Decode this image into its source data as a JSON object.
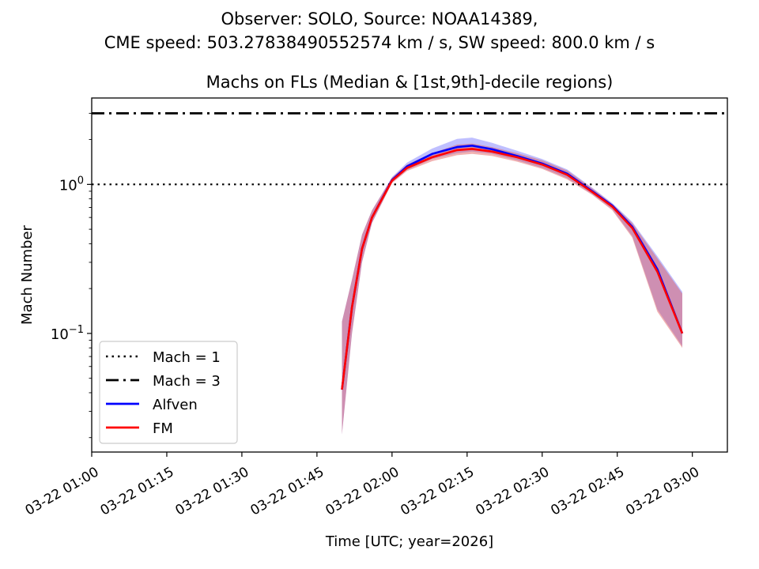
{
  "figure": {
    "suptitle_line1": "Observer: SOLO, Source: NOAA14389,",
    "suptitle_line2": "CME speed: 503.27838490552574 km / s, SW speed: 800.0 km / s"
  },
  "chart_data": {
    "type": "line",
    "title": "Machs on FLs (Median & [1st,9th]-decile regions)",
    "xlabel": "Time [UTC; year=2026]",
    "ylabel": "Mach Number",
    "yscale": "log",
    "xlim": [
      "2026-03-22 01:00",
      "2026-03-22 03:07"
    ],
    "ylim": [
      0.016,
      3.8
    ],
    "x_ticks": [
      "03-22 01:00",
      "03-22 01:15",
      "03-22 01:30",
      "03-22 01:45",
      "03-22 02:00",
      "03-22 02:15",
      "03-22 02:30",
      "03-22 02:45",
      "03-22 03:00"
    ],
    "y_ticks": [
      {
        "value": 0.1,
        "base": "10",
        "exp": "−1"
      },
      {
        "value": 1,
        "base": "10",
        "exp": "0"
      }
    ],
    "grid": false,
    "legend_position": "lower-left",
    "reference_lines": [
      {
        "name": "Mach = 1",
        "value": 1,
        "style": "dotted",
        "color": "#000000"
      },
      {
        "name": "Mach = 3",
        "value": 3,
        "style": "dashdot",
        "color": "#000000"
      }
    ],
    "series": [
      {
        "name": "Alfven",
        "color": "#0000ff",
        "band_color": "#7070ff",
        "points": [
          {
            "t": "2026-03-22 01:50",
            "median": 0.042,
            "low": 0.021,
            "high": 0.12
          },
          {
            "t": "2026-03-22 01:52",
            "median": 0.15,
            "low": 0.1,
            "high": 0.23
          },
          {
            "t": "2026-03-22 01:54",
            "median": 0.37,
            "low": 0.3,
            "high": 0.46
          },
          {
            "t": "2026-03-22 01:56",
            "median": 0.6,
            "low": 0.55,
            "high": 0.67
          },
          {
            "t": "2026-03-22 02:00",
            "median": 1.07,
            "low": 1.03,
            "high": 1.12
          },
          {
            "t": "2026-03-22 02:03",
            "median": 1.32,
            "low": 1.25,
            "high": 1.4
          },
          {
            "t": "2026-03-22 02:08",
            "median": 1.6,
            "low": 1.48,
            "high": 1.74
          },
          {
            "t": "2026-03-22 02:13",
            "median": 1.78,
            "low": 1.62,
            "high": 2.02
          },
          {
            "t": "2026-03-22 02:16",
            "median": 1.82,
            "low": 1.66,
            "high": 2.06
          },
          {
            "t": "2026-03-22 02:20",
            "median": 1.72,
            "low": 1.6,
            "high": 1.9
          },
          {
            "t": "2026-03-22 02:25",
            "median": 1.55,
            "low": 1.45,
            "high": 1.68
          },
          {
            "t": "2026-03-22 02:30",
            "median": 1.38,
            "low": 1.29,
            "high": 1.48
          },
          {
            "t": "2026-03-22 02:35",
            "median": 1.18,
            "low": 1.1,
            "high": 1.26
          },
          {
            "t": "2026-03-22 02:40",
            "median": 0.9,
            "low": 0.86,
            "high": 0.95
          },
          {
            "t": "2026-03-22 02:44",
            "median": 0.72,
            "low": 0.68,
            "high": 0.75
          },
          {
            "t": "2026-03-22 02:48",
            "median": 0.52,
            "low": 0.45,
            "high": 0.56
          },
          {
            "t": "2026-03-22 02:53",
            "median": 0.27,
            "low": 0.145,
            "high": 0.33
          },
          {
            "t": "2026-03-22 02:58",
            "median": 0.1,
            "low": 0.082,
            "high": 0.19
          }
        ]
      },
      {
        "name": "FM",
        "color": "#ff0000",
        "band_color": "#e05555",
        "points": [
          {
            "t": "2026-03-22 01:50",
            "median": 0.042,
            "low": 0.021,
            "high": 0.12
          },
          {
            "t": "2026-03-22 01:52",
            "median": 0.15,
            "low": 0.1,
            "high": 0.23
          },
          {
            "t": "2026-03-22 01:54",
            "median": 0.37,
            "low": 0.3,
            "high": 0.46
          },
          {
            "t": "2026-03-22 01:56",
            "median": 0.6,
            "low": 0.55,
            "high": 0.67
          },
          {
            "t": "2026-03-22 02:00",
            "median": 1.06,
            "low": 1.02,
            "high": 1.11
          },
          {
            "t": "2026-03-22 02:03",
            "median": 1.29,
            "low": 1.23,
            "high": 1.36
          },
          {
            "t": "2026-03-22 02:08",
            "median": 1.52,
            "low": 1.43,
            "high": 1.62
          },
          {
            "t": "2026-03-22 02:13",
            "median": 1.7,
            "low": 1.57,
            "high": 1.85
          },
          {
            "t": "2026-03-22 02:16",
            "median": 1.73,
            "low": 1.6,
            "high": 1.88
          },
          {
            "t": "2026-03-22 02:20",
            "median": 1.66,
            "low": 1.55,
            "high": 1.78
          },
          {
            "t": "2026-03-22 02:25",
            "median": 1.52,
            "low": 1.42,
            "high": 1.62
          },
          {
            "t": "2026-03-22 02:30",
            "median": 1.36,
            "low": 1.27,
            "high": 1.45
          },
          {
            "t": "2026-03-22 02:35",
            "median": 1.16,
            "low": 1.08,
            "high": 1.24
          },
          {
            "t": "2026-03-22 02:40",
            "median": 0.89,
            "low": 0.85,
            "high": 0.94
          },
          {
            "t": "2026-03-22 02:44",
            "median": 0.71,
            "low": 0.67,
            "high": 0.74
          },
          {
            "t": "2026-03-22 02:48",
            "median": 0.51,
            "low": 0.44,
            "high": 0.55
          },
          {
            "t": "2026-03-22 02:53",
            "median": 0.26,
            "low": 0.14,
            "high": 0.32
          },
          {
            "t": "2026-03-22 02:58",
            "median": 0.1,
            "low": 0.08,
            "high": 0.185
          }
        ]
      }
    ]
  }
}
